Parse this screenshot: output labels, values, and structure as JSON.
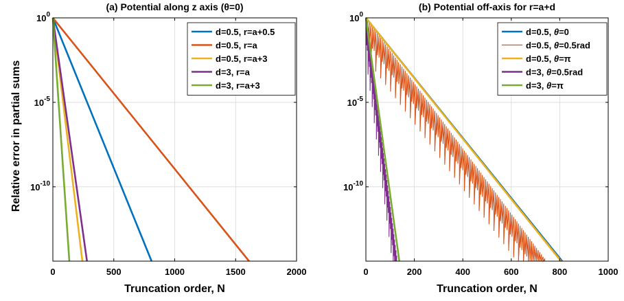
{
  "figure": {
    "ylabel": "Relative error in partial sums"
  },
  "chart_data": [
    {
      "type": "line",
      "title": "(a) Potential along z axis (θ=0)",
      "xlabel": "Truncation order, N",
      "ylabel": "Relative error in partial sums",
      "xlim": [
        0,
        2000
      ],
      "ylim_log10": [
        -14.4,
        0
      ],
      "yscale": "log",
      "x_ticks": [
        "0",
        "500",
        "1000",
        "1500",
        "2000"
      ],
      "y_ticks": [
        {
          "exp": "0"
        },
        {
          "exp": "-5"
        },
        {
          "exp": "-10"
        }
      ],
      "grid": true,
      "legend_position": "top-right",
      "series": [
        {
          "name": "d=0.5, r=a+0.5",
          "color": "#0072BD",
          "x": [
            0,
            810
          ],
          "log10_y": [
            0,
            -14.4
          ]
        },
        {
          "name": "d=0.5, r=a",
          "color": "#D95319",
          "x": [
            0,
            1610
          ],
          "log10_y": [
            0,
            -14.4
          ]
        },
        {
          "name": "d=0.5, r=a+3",
          "color": "#EDB120",
          "x": [
            0,
            242
          ],
          "log10_y": [
            0,
            -14.4
          ]
        },
        {
          "name": "d=3, r=a",
          "color": "#7E2F8E",
          "x": [
            0,
            280
          ],
          "log10_y": [
            0,
            -14.4
          ]
        },
        {
          "name": "d=3, r=a+3",
          "color": "#77AC30",
          "x": [
            0,
            135
          ],
          "log10_y": [
            0,
            -14.4
          ]
        }
      ]
    },
    {
      "type": "line",
      "title": "(b) Potential off-axis for r=a+d",
      "xlabel": "Truncation order, N",
      "xlim": [
        0,
        1000
      ],
      "ylim_log10": [
        -14.4,
        0
      ],
      "yscale": "log",
      "x_ticks": [
        "0",
        "200",
        "400",
        "600",
        "800",
        "1000"
      ],
      "y_ticks": [
        {
          "exp": "0"
        },
        {
          "exp": "-5"
        },
        {
          "exp": "-10"
        }
      ],
      "grid": true,
      "legend_position": "top-right",
      "series": [
        {
          "name_prefix": "d=0.5, ",
          "name_sym": "θ",
          "name_suffix": "=0",
          "color": "#0072BD",
          "x": [
            0,
            810
          ],
          "log10_y": [
            0,
            -14.4
          ],
          "oscillating": false
        },
        {
          "name_prefix": "d=0.5, ",
          "name_sym": "θ",
          "name_suffix": "=0.5rad",
          "color": "#D95319",
          "x": [
            0,
            745
          ],
          "log10_y": [
            0,
            -14.4
          ],
          "oscillating": true
        },
        {
          "name_prefix": "d=0.5, ",
          "name_sym": "θ",
          "name_suffix": "=π",
          "color": "#EDB120",
          "x": [
            0,
            805
          ],
          "log10_y": [
            0,
            -14.4
          ],
          "oscillating": false
        },
        {
          "name_prefix": "d=3, ",
          "name_sym": "θ",
          "name_suffix": "=0.5rad",
          "color": "#7E2F8E",
          "x": [
            0,
            130
          ],
          "log10_y": [
            0,
            -14.4
          ],
          "oscillating": true
        },
        {
          "name_prefix": "d=3, ",
          "name_sym": "θ",
          "name_suffix": "=π",
          "color": "#77AC30",
          "x": [
            0,
            138
          ],
          "log10_y": [
            0,
            -14.4
          ],
          "oscillating": false
        }
      ]
    }
  ]
}
